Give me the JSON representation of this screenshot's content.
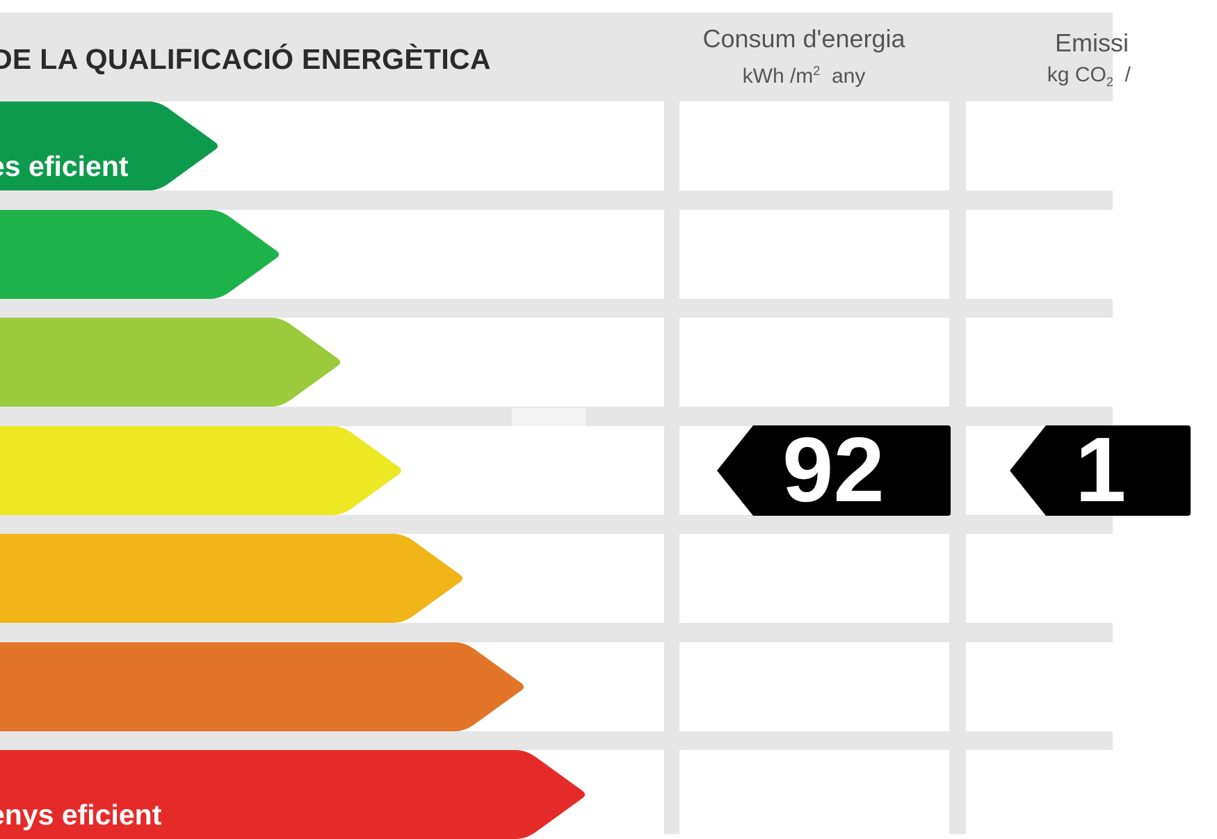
{
  "title": "DE LA QUALIFICACIÓ ENERGÈTICA",
  "columns": {
    "consum": {
      "heading": "Consum d'energia",
      "unit_prefix": "kWh /m",
      "unit_sup": "2",
      "unit_suffix": "  any"
    },
    "emissions": {
      "heading": "Emissi",
      "unit_prefix": "kg CO",
      "unit_sub": "2",
      "unit_suffix": "  / "
    }
  },
  "ratings": [
    {
      "color": "#0e9a4c",
      "label": "es eficient"
    },
    {
      "color": "#1db34a",
      "label": ""
    },
    {
      "color": "#9bca3c",
      "label": ""
    },
    {
      "color": "#ede824",
      "label": ""
    },
    {
      "color": "#f1b419",
      "label": ""
    },
    {
      "color": "#e27527",
      "label": ""
    },
    {
      "color": "#e52a2a",
      "label": "enys eficient"
    }
  ],
  "current_rating_index": 3,
  "consum_value": "92",
  "emissions_value": "1"
}
